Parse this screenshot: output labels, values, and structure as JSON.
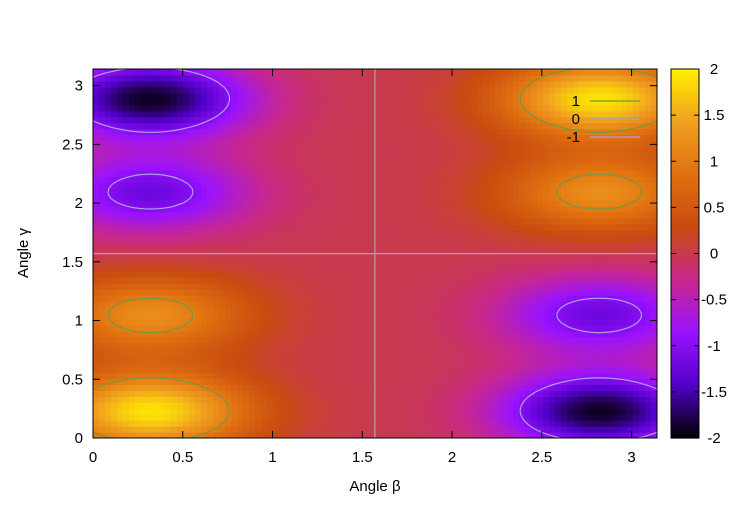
{
  "chart_data": {
    "type": "heatmap",
    "title": "",
    "xlabel": "Angle β",
    "ylabel": "Angle γ",
    "xlim": [
      0,
      3.1416
    ],
    "ylim": [
      0,
      3.1416
    ],
    "x_ticks": [
      0,
      0.5,
      1,
      1.5,
      2,
      2.5,
      3
    ],
    "x_tick_labels": [
      "0",
      "0.5",
      "1",
      "1.5",
      "2",
      "2.5",
      "3"
    ],
    "y_ticks": [
      0,
      0.5,
      1,
      1.5,
      2,
      2.5,
      3
    ],
    "y_tick_labels": [
      "0",
      "0.5",
      "1",
      "1.5",
      "2",
      "2.5",
      "3"
    ],
    "colorbar": {
      "range": [
        -2,
        2
      ],
      "ticks": [
        2,
        1.5,
        1,
        0.5,
        0,
        -0.5,
        -1,
        -1.5,
        -2
      ],
      "tick_labels": [
        "2",
        "1.5",
        "1",
        "0.5",
        "0",
        "-0.5",
        "-1",
        "-1.5",
        "-2"
      ],
      "palette": [
        "#000000",
        "#5000c8",
        "#9a12ff",
        "#c8288c",
        "#c84b10",
        "#e07010",
        "#f0a020",
        "#fff000"
      ]
    },
    "contour_levels": [
      1,
      0,
      -1
    ],
    "contour_colors": [
      "#6e9a40",
      "#a8a8a8",
      "#b0a0e0"
    ],
    "legend": {
      "placement": "top-right",
      "entries": [
        {
          "label": "1",
          "color": "#6e9a40"
        },
        {
          "label": "0",
          "color": "#a8a8a8"
        },
        {
          "label": "-1",
          "color": "#b0a0e0"
        }
      ]
    },
    "extrema": [
      {
        "beta": 0.32,
        "gamma": 2.89,
        "value": -1.9
      },
      {
        "beta": 0.32,
        "gamma": 2.09,
        "value": -1.2
      },
      {
        "beta": 0.32,
        "gamma": 1.05,
        "value": 1.2
      },
      {
        "beta": 0.32,
        "gamma": 0.23,
        "value": 1.9
      },
      {
        "beta": 2.82,
        "gamma": 2.89,
        "value": 1.9
      },
      {
        "beta": 2.82,
        "gamma": 2.09,
        "value": 1.2
      },
      {
        "beta": 2.82,
        "gamma": 1.05,
        "value": -1.2
      },
      {
        "beta": 2.82,
        "gamma": 0.23,
        "value": -1.9
      }
    ],
    "grid": false
  }
}
